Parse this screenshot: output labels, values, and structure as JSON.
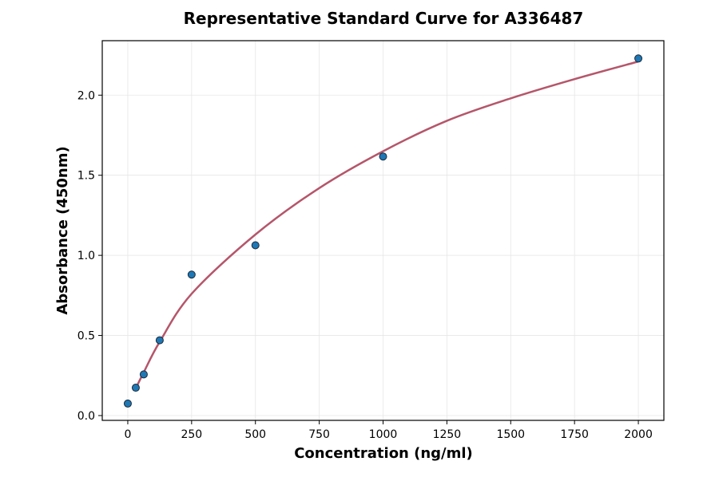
{
  "chart_data": {
    "type": "scatter",
    "title": "Representative Standard Curve for A336487",
    "xlabel": "Concentration (ng/ml)",
    "ylabel": "Absorbance (450nm)",
    "xlim": [
      -100,
      2100
    ],
    "ylim": [
      -0.03,
      2.34
    ],
    "xticks": [
      0,
      250,
      500,
      750,
      1000,
      1250,
      1500,
      1750,
      2000
    ],
    "yticks": [
      0.0,
      0.5,
      1.0,
      1.5,
      2.0
    ],
    "grid": true,
    "points": {
      "x": [
        0,
        31.25,
        62.5,
        125,
        250,
        500,
        1000,
        2000
      ],
      "y": [
        0.075,
        0.174,
        0.257,
        0.47,
        0.88,
        1.063,
        1.617,
        2.229
      ],
      "color": "#1f77b4"
    },
    "fit_curve": {
      "x": [
        31.25,
        62.5,
        125,
        250,
        500,
        750,
        1000,
        1250,
        1500,
        1750,
        2000
      ],
      "y": [
        0.17,
        0.27,
        0.46,
        0.76,
        1.13,
        1.42,
        1.65,
        1.84,
        1.98,
        2.1,
        2.21
      ],
      "color": "#b5566a"
    }
  }
}
